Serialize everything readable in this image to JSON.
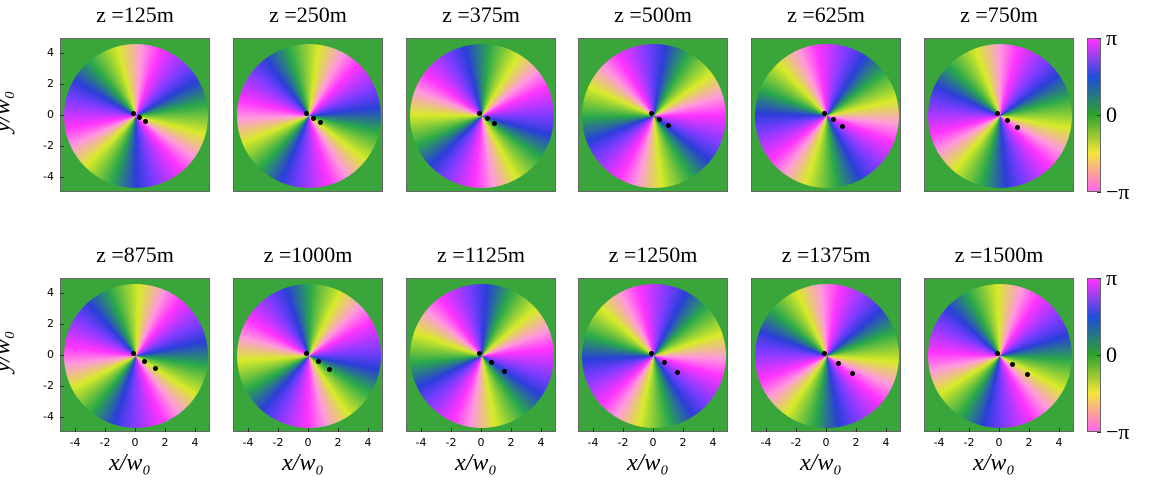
{
  "figure": {
    "panels": [
      "z =125m",
      "z =250m",
      "z =375m",
      "z =500m",
      "z =625m",
      "z =750m",
      "z =875m",
      "z =1000m",
      "z =1125m",
      "z =1250m",
      "z =1375m",
      "z =1500m"
    ],
    "xlabel": "x/w₀",
    "ylabel": "y/w₀",
    "xlim": [
      -5,
      5
    ],
    "ylim": [
      -5,
      5
    ],
    "xticks": [
      -4,
      -2,
      0,
      2,
      4
    ],
    "yticks": [
      4,
      2,
      0,
      -2,
      -4
    ],
    "colorbar": {
      "lim": [
        -3.14159,
        3.14159
      ],
      "ticks": [
        {
          "value": 3.14159,
          "label": "π"
        },
        {
          "value": 0,
          "label": "0"
        },
        {
          "value": -3.14159,
          "label": "−π"
        }
      ]
    }
  }
}
